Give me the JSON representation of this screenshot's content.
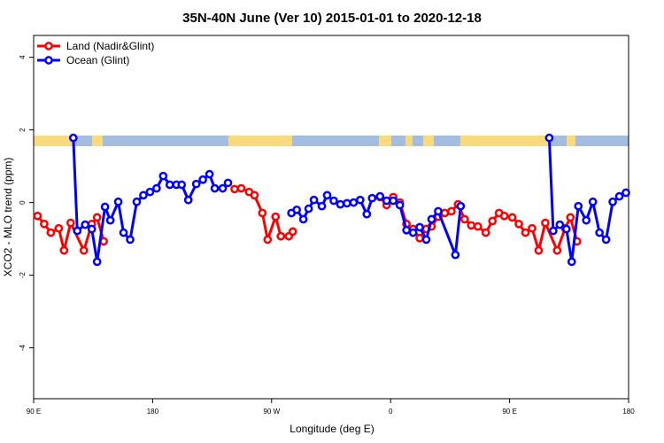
{
  "chart_data": {
    "type": "line",
    "title": "35N-40N June (Ver 10)   2015-01-01 to 2020-12-18",
    "x_label": "Longitude (deg E)",
    "y_label": "XCO2 - MLO trend (ppm)",
    "xlim": [
      90,
      540
    ],
    "xticks": [
      {
        "value": 90,
        "label": "90 E"
      },
      {
        "value": 180,
        "label": "180"
      },
      {
        "value": 270,
        "label": "90 W"
      },
      {
        "value": 360,
        "label": "0"
      },
      {
        "value": 450,
        "label": "90 E"
      },
      {
        "value": 540,
        "label": "180"
      }
    ],
    "ylim": [
      -5.4,
      4.6
    ],
    "yticks": [
      -4,
      -2,
      0,
      2,
      4
    ],
    "legend": "top-left",
    "series": [
      {
        "name": "Land (Nadir&Glint)",
        "color": "#ff0000",
        "x": [
          93,
          98,
          103,
          109,
          113,
          118,
          128,
          134,
          138,
          143,
          null,
          242,
          247,
          253,
          257,
          263,
          267,
          273,
          277,
          283,
          286,
          null,
          352,
          357,
          362,
          367,
          372,
          377,
          382,
          387,
          391,
          396,
          401,
          406,
          411,
          416,
          421,
          426,
          432,
          437,
          442,
          446,
          452,
          457,
          462,
          467,
          472,
          477,
          486,
          492,
          496,
          501
        ],
        "values": [
          -0.37,
          -0.59,
          -0.83,
          -0.71,
          -1.32,
          -0.56,
          -1.32,
          -0.59,
          -0.41,
          -1.07,
          null,
          0.37,
          0.39,
          0.29,
          0.2,
          -0.29,
          -1.02,
          -0.39,
          -0.93,
          -0.93,
          -0.8,
          null,
          0.15,
          -0.07,
          0.15,
          0,
          -0.59,
          -0.73,
          -0.98,
          -0.73,
          -0.66,
          -0.39,
          -0.29,
          -0.24,
          -0.05,
          -0.46,
          -0.63,
          -0.66,
          -0.83,
          -0.51,
          -0.29,
          -0.37,
          -0.41,
          -0.59,
          -0.83,
          -0.71,
          -1.32,
          -0.56,
          -1.32,
          -0.71,
          -0.41,
          -1.07
        ]
      },
      {
        "name": "Ocean (Glint)",
        "color": "#0000ff",
        "x": [
          120,
          123,
          129,
          134,
          138,
          144,
          148,
          154,
          158,
          163,
          168,
          173,
          178,
          183,
          188,
          193,
          198,
          202,
          207,
          213,
          218,
          223,
          227,
          233,
          237,
          null,
          285,
          289,
          294,
          298,
          302,
          308,
          312,
          317,
          322,
          327,
          332,
          337,
          342,
          346,
          352,
          357,
          362,
          367,
          372,
          377,
          382,
          387,
          391,
          396,
          409,
          413,
          null,
          480,
          483,
          488,
          493,
          497,
          502,
          508,
          513,
          518,
          523,
          528,
          533,
          538
        ],
        "values": [
          1.78,
          -0.78,
          -0.61,
          -0.73,
          -1.63,
          -0.12,
          -0.49,
          0.02,
          -0.83,
          -1.02,
          0.02,
          0.2,
          0.29,
          0.39,
          0.73,
          0.49,
          0.49,
          0.49,
          0.07,
          0.51,
          0.63,
          0.78,
          0.39,
          0.39,
          0.54,
          null,
          -0.29,
          -0.2,
          -0.46,
          -0.17,
          0.07,
          -0.1,
          0.2,
          0.05,
          -0.05,
          -0.02,
          0,
          0.07,
          -0.32,
          0.12,
          0.17,
          0.05,
          0.05,
          -0.07,
          -0.76,
          -0.83,
          -0.68,
          -1.02,
          -0.46,
          -0.24,
          -1.44,
          -0.1,
          null,
          1.78,
          -0.78,
          -0.61,
          -0.73,
          -1.63,
          -0.1,
          -0.49,
          0.02,
          -0.83,
          -1.02,
          0.02,
          0.17,
          0.27
        ]
      }
    ]
  }
}
